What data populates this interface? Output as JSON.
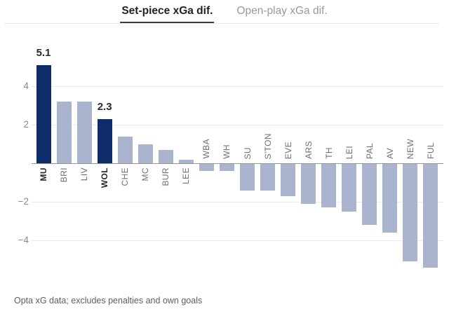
{
  "header": {
    "tabs": [
      {
        "label": "Set-piece xGa dif.",
        "active": true
      },
      {
        "label": "Open-play xGa dif.",
        "active": false
      }
    ]
  },
  "footnote": "Opta xG data; excludes penalties and own goals",
  "colors": {
    "background": "#ffffff",
    "bar_highlight": "#0d2c69",
    "bar_default": "#aab4cf",
    "tab_active": "#222222",
    "tab_inactive": "#9a9a9a",
    "tab_underline": "#3d3d3d",
    "divider": "#ebebeb",
    "grid": "#eaeaea",
    "axis": "#949494",
    "tick_label": "#8a8a8a",
    "team_label": "#6f6f6f",
    "team_label_highlight": "#24292e",
    "value_label": "#2b2b2b",
    "footnote": "#5e5e5e"
  },
  "chart_data": {
    "type": "bar",
    "title": "Set-piece xGa dif.",
    "categories": [
      "MU",
      "BRI",
      "LIV",
      "WOL",
      "CHE",
      "MC",
      "BUR",
      "LEE",
      "WBA",
      "WH",
      "SU",
      "S'TON",
      "EVE",
      "ARS",
      "TH",
      "LEI",
      "PAL",
      "AV",
      "NEW",
      "FUL"
    ],
    "values": [
      5.1,
      3.2,
      3.2,
      2.3,
      1.4,
      1.0,
      0.7,
      0.2,
      -0.4,
      -0.4,
      -1.4,
      -1.4,
      -1.7,
      -2.1,
      -2.3,
      -2.5,
      -3.2,
      -3.6,
      -5.1,
      -5.4
    ],
    "highlighted": [
      "MU",
      "WOL"
    ],
    "value_labels": {
      "MU": "5.1",
      "WOL": "2.3"
    },
    "yticks": [
      4,
      2,
      -2,
      -4
    ],
    "ytick_labels": [
      "4",
      "2",
      "−2",
      "−4"
    ],
    "ylim": [
      -5.8,
      5.6
    ],
    "grid": true,
    "legend": "none",
    "xlabel": "",
    "ylabel": ""
  }
}
